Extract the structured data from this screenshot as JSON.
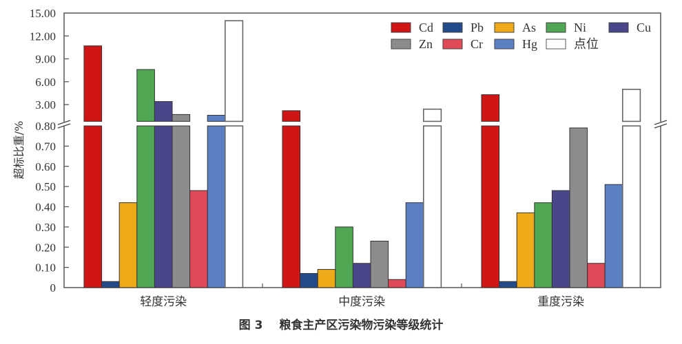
{
  "chart_data": {
    "type": "bar",
    "title": "",
    "caption": "图 3   粮食主产区污染物污染等级统计",
    "caption_figure": "图 3",
    "caption_text": "粮食主产区污染物污染等级统计",
    "xlabel": "",
    "ylabel": "超标比重/%",
    "categories": [
      "轻度污染",
      "中度污染",
      "重度污染"
    ],
    "y_axis": {
      "broken": true,
      "lower_range": [
        0,
        0.8
      ],
      "upper_range": [
        0.8,
        15.0
      ],
      "lower_ticks": [
        "0",
        "0.10",
        "0.20",
        "0.30",
        "0.40",
        "0.50",
        "0.60",
        "0.70",
        "0.80"
      ],
      "upper_ticks": [
        "3.00",
        "6.00",
        "9.00",
        "12.00",
        "15.00"
      ]
    },
    "legend_position": "upper right",
    "grid": false,
    "series": [
      {
        "name": "Cd",
        "color": "#d01515",
        "values": [
          10.7,
          2.2,
          4.3
        ]
      },
      {
        "name": "Pb",
        "color": "#234a8a",
        "values": [
          0.03,
          0.07,
          0.03
        ]
      },
      {
        "name": "As",
        "color": "#eeaa18",
        "values": [
          0.42,
          0.09,
          0.37
        ]
      },
      {
        "name": "Ni",
        "color": "#4fa653",
        "values": [
          7.6,
          0.3,
          0.42
        ]
      },
      {
        "name": "Cu",
        "color": "#4a468a",
        "values": [
          3.4,
          0.12,
          0.48
        ]
      },
      {
        "name": "Zn",
        "color": "#8c8c8c",
        "values": [
          1.7,
          0.23,
          0.79
        ]
      },
      {
        "name": "Cr",
        "color": "#e04a58",
        "values": [
          0.48,
          0.04,
          0.12
        ]
      },
      {
        "name": "Hg",
        "color": "#5a7fc2",
        "values": [
          1.6,
          0.42,
          0.51
        ]
      },
      {
        "name": "点位",
        "color": "#ffffff",
        "values": [
          14.0,
          2.4,
          5.0
        ]
      }
    ]
  }
}
